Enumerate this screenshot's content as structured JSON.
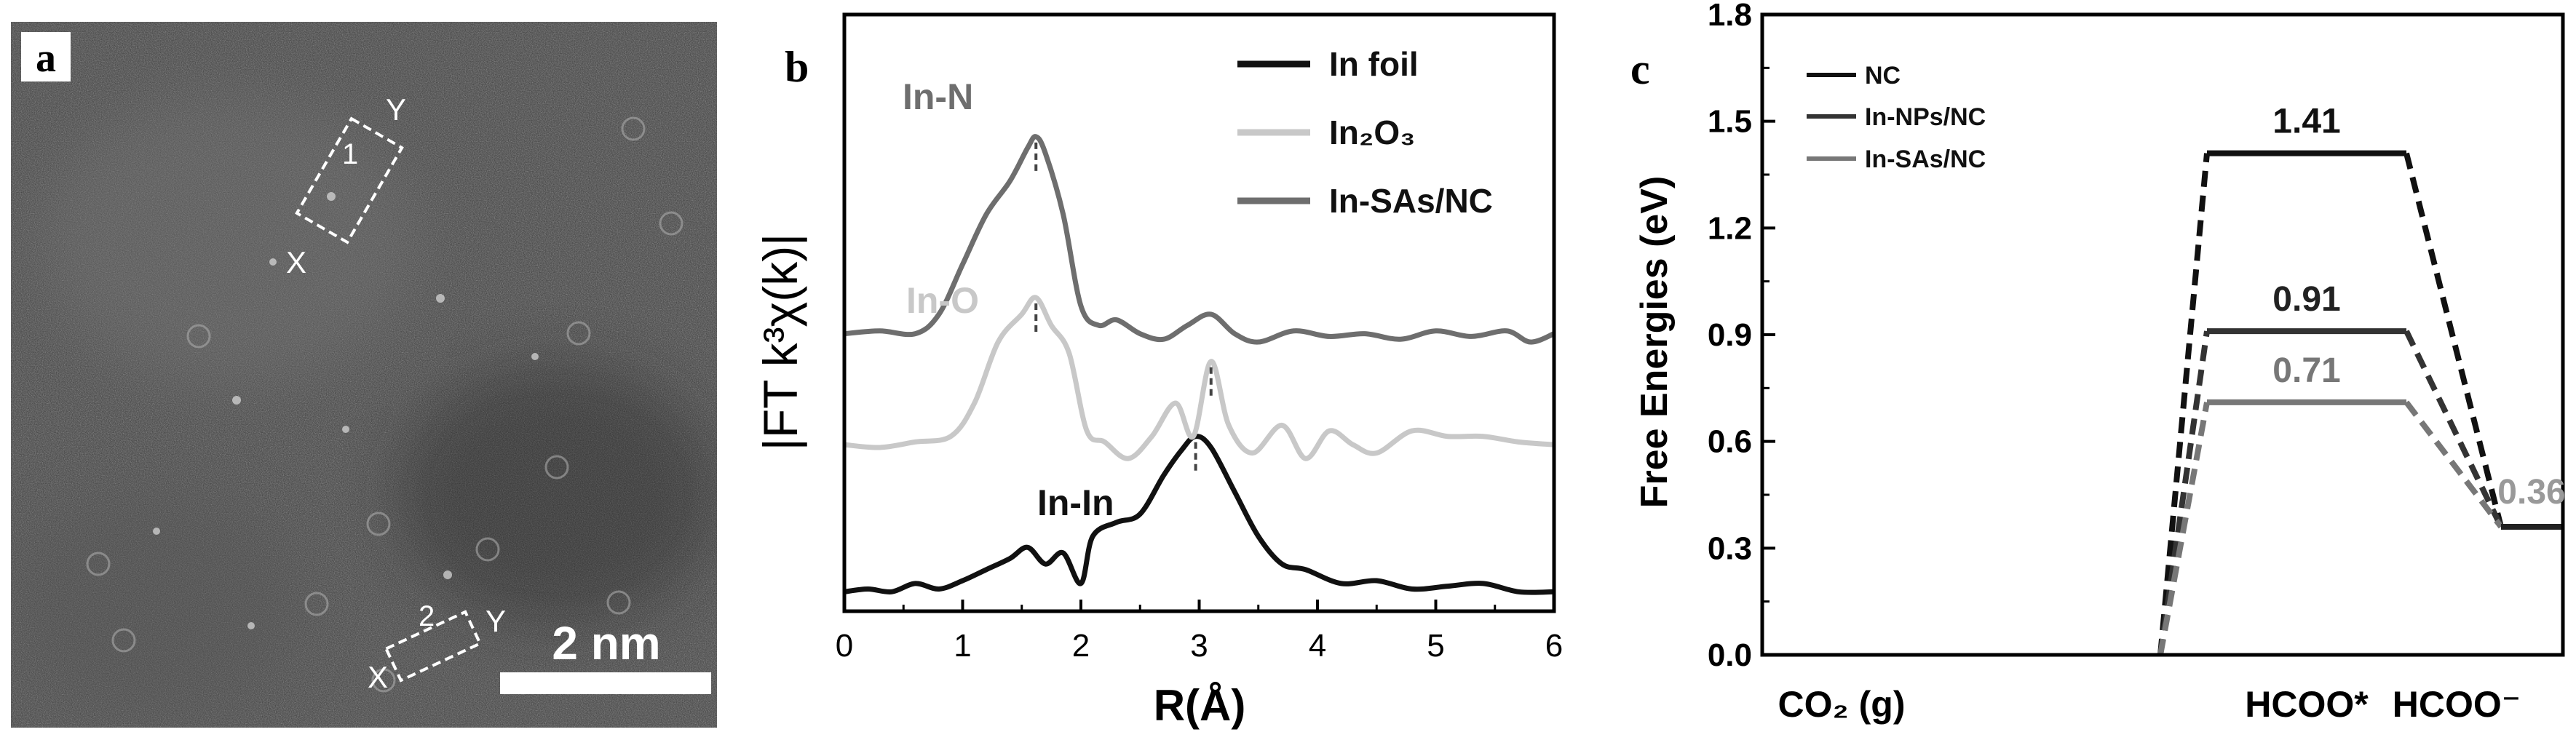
{
  "panels": {
    "a": {
      "label": "a",
      "scalebar": "2 nm",
      "box1": {
        "num": "1",
        "x": "X",
        "y": "Y"
      },
      "box2": {
        "num": "2",
        "x": "X",
        "y": "Y"
      }
    },
    "b": {
      "label": "b"
    },
    "c": {
      "label": "c"
    }
  },
  "chart_data": [
    {
      "type": "line",
      "panel": "b",
      "xlabel": "R(Å)",
      "ylabel": "|FT k³χ(k)|",
      "xlim": [
        0,
        6
      ],
      "xticks": [
        0,
        1,
        2,
        3,
        4,
        5,
        6
      ],
      "legend_position": "top-right",
      "series": [
        {
          "name": "In foil",
          "color": "#111111",
          "x": [
            0,
            0.2,
            0.4,
            0.6,
            0.8,
            1.0,
            1.2,
            1.4,
            1.55,
            1.7,
            1.85,
            2.0,
            2.1,
            2.3,
            2.5,
            2.7,
            2.85,
            2.97,
            3.1,
            3.3,
            3.5,
            3.7,
            3.9,
            4.2,
            4.5,
            4.8,
            5.1,
            5.4,
            5.7,
            6.0
          ],
          "y": [
            0.02,
            0.03,
            0.02,
            0.05,
            0.03,
            0.06,
            0.1,
            0.14,
            0.18,
            0.12,
            0.16,
            0.05,
            0.22,
            0.27,
            0.3,
            0.44,
            0.53,
            0.58,
            0.54,
            0.38,
            0.22,
            0.12,
            0.1,
            0.05,
            0.06,
            0.03,
            0.04,
            0.05,
            0.02,
            0.02
          ]
        },
        {
          "name": "In₂O₃",
          "color": "#c8c8c8",
          "x": [
            0,
            0.3,
            0.6,
            0.9,
            1.1,
            1.3,
            1.5,
            1.62,
            1.75,
            1.9,
            2.05,
            2.2,
            2.4,
            2.6,
            2.8,
            2.95,
            3.1,
            3.25,
            3.45,
            3.7,
            3.9,
            4.1,
            4.3,
            4.5,
            4.8,
            5.1,
            5.4,
            5.7,
            6.0
          ],
          "y": [
            0.55,
            0.54,
            0.56,
            0.58,
            0.7,
            0.92,
            1.02,
            1.08,
            0.98,
            0.88,
            0.6,
            0.56,
            0.5,
            0.58,
            0.7,
            0.58,
            0.85,
            0.62,
            0.52,
            0.62,
            0.5,
            0.6,
            0.55,
            0.52,
            0.6,
            0.58,
            0.58,
            0.56,
            0.55
          ]
        },
        {
          "name": "In-SAs/NC",
          "color": "#6e6e6e",
          "x": [
            0,
            0.3,
            0.6,
            0.8,
            1.0,
            1.2,
            1.4,
            1.55,
            1.62,
            1.7,
            1.85,
            2.0,
            2.15,
            2.3,
            2.5,
            2.7,
            2.9,
            3.1,
            3.3,
            3.5,
            3.8,
            4.1,
            4.4,
            4.7,
            5.0,
            5.3,
            5.6,
            5.8,
            6.0
          ],
          "y": [
            0.95,
            0.96,
            0.95,
            1.02,
            1.2,
            1.38,
            1.5,
            1.62,
            1.66,
            1.6,
            1.38,
            1.05,
            0.98,
            1.0,
            0.95,
            0.93,
            0.98,
            1.02,
            0.95,
            0.92,
            0.96,
            0.94,
            0.95,
            0.93,
            0.96,
            0.94,
            0.96,
            0.92,
            0.95
          ]
        }
      ],
      "annotations": [
        {
          "text": "In-N",
          "color": "#6e6e6e"
        },
        {
          "text": "In-O",
          "color": "#c8c8c8"
        },
        {
          "text": "In-In",
          "color": "#111111"
        }
      ],
      "dashed_markers": [
        {
          "x": 1.62,
          "series": "In-SAs/NC"
        },
        {
          "x": 1.62,
          "series": "In₂O₃"
        },
        {
          "x": 3.1,
          "series": "In₂O₃"
        },
        {
          "x": 2.97,
          "series": "In foil"
        }
      ]
    },
    {
      "type": "line",
      "panel": "c",
      "xlabel": "",
      "ylabel": "Free Energies (eV)",
      "ylim": [
        0,
        1.8
      ],
      "yticks": [
        0.0,
        0.3,
        0.6,
        0.9,
        1.2,
        1.5,
        1.8
      ],
      "categories": [
        "CO₂ (g)",
        "HCOO*",
        "HCOO⁻"
      ],
      "legend_position": "top-left",
      "series": [
        {
          "name": "NC",
          "color": "#111111",
          "values": [
            0,
            1.41,
            0.36
          ]
        },
        {
          "name": "In-NPs/NC",
          "color": "#333333",
          "values": [
            0,
            0.91,
            0.36
          ]
        },
        {
          "name": "In-SAs/NC",
          "color": "#777777",
          "values": [
            0,
            0.71,
            0.36
          ]
        }
      ],
      "data_labels": [
        {
          "text": "1.41",
          "color": "#111111"
        },
        {
          "text": "0.91",
          "color": "#222222"
        },
        {
          "text": "0.71",
          "color": "#777777"
        },
        {
          "text": "0.36",
          "color": "#999999"
        }
      ]
    }
  ]
}
